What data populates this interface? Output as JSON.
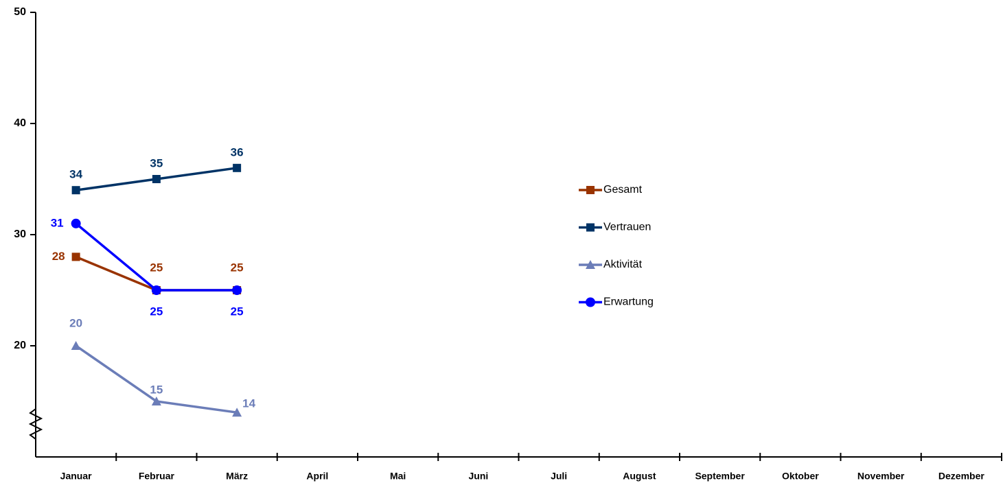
{
  "chart_data": {
    "type": "line",
    "categories": [
      "Januar",
      "Februar",
      "März",
      "April",
      "Mai",
      "Juni",
      "Juli",
      "August",
      "September",
      "Oktober",
      "November",
      "Dezember"
    ],
    "series": [
      {
        "name": "Gesamt",
        "color": "#993300",
        "marker": "square",
        "values": [
          28,
          25,
          25,
          null,
          null,
          null,
          null,
          null,
          null,
          null,
          null,
          null
        ]
      },
      {
        "name": "Vertrauen",
        "color": "#003366",
        "marker": "square",
        "values": [
          34,
          35,
          36,
          null,
          null,
          null,
          null,
          null,
          null,
          null,
          null,
          null
        ]
      },
      {
        "name": "Aktivität",
        "color": "#6b7db8",
        "marker": "triangle",
        "values": [
          20,
          15,
          14,
          null,
          null,
          null,
          null,
          null,
          null,
          null,
          null,
          null
        ]
      },
      {
        "name": "Erwartung",
        "color": "#0000ff",
        "marker": "circle",
        "values": [
          31,
          25,
          25,
          null,
          null,
          null,
          null,
          null,
          null,
          null,
          null,
          null
        ]
      }
    ],
    "ylim": [
      10,
      50
    ],
    "yticks": [
      20,
      30,
      40,
      50
    ],
    "legend": "right",
    "grid": false
  }
}
